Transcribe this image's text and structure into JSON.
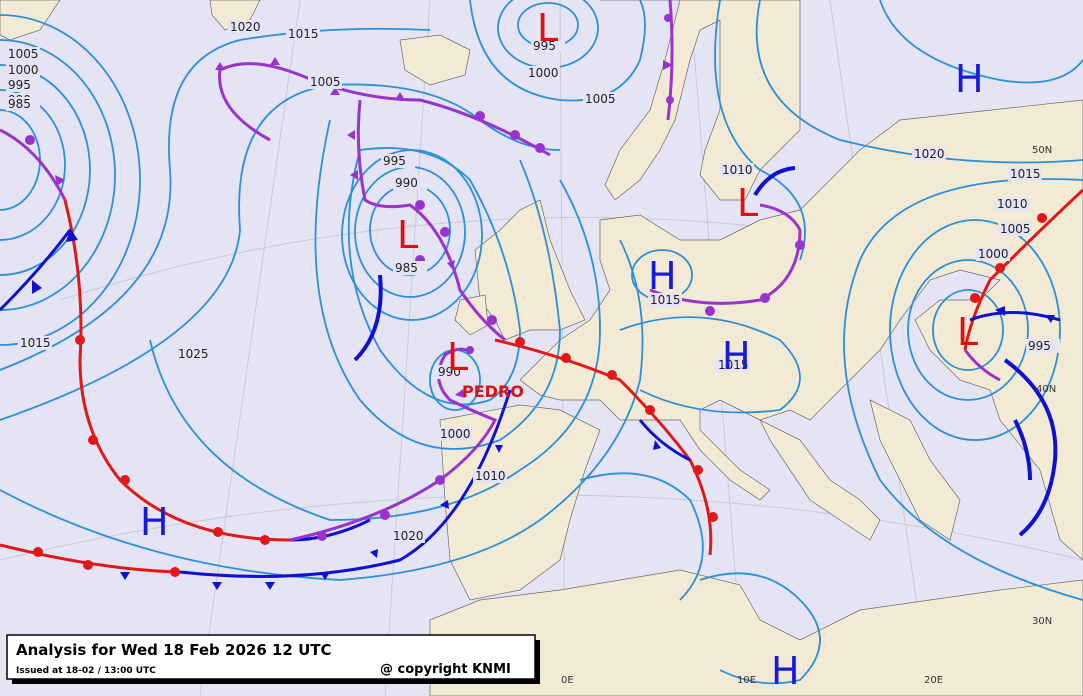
{
  "caption": {
    "title": "Analysis for Wed 18 Feb 2026 12 UTC",
    "issued": "Issued at 18-02 / 13:00 UTC",
    "copyright": "@ copyright KNMI"
  },
  "storm_name": "PEDRO",
  "pressure_centers": [
    {
      "label": "H",
      "color": "#1a1ad6"
    },
    {
      "label": "L",
      "color": "#e01010"
    },
    {
      "label": "L",
      "color": "#e01010"
    },
    {
      "label": "H",
      "color": "#1a1ad6"
    },
    {
      "label": "H",
      "color": "#1a1ad6"
    },
    {
      "label": "L",
      "color": "#e01010"
    },
    {
      "label": "L",
      "color": "#e01010"
    },
    {
      "label": "H",
      "color": "#1a1ad6"
    },
    {
      "label": "H",
      "color": "#1a1ad6"
    },
    {
      "label": "L",
      "color": "#e01010"
    }
  ],
  "isobar_labels": [
    "1020",
    "1015",
    "1005",
    "1000",
    "995",
    "990",
    "985",
    "1005",
    "995",
    "990",
    "985",
    "995",
    "1000",
    "1005",
    "1010",
    "1015",
    "1020",
    "1015",
    "1010",
    "1005",
    "1000",
    "995",
    "1025",
    "1015",
    "990",
    "1000",
    "1010",
    "1020",
    "1015"
  ],
  "graticule_labels": [
    "50N",
    "40N",
    "30N",
    "0E",
    "10E",
    "20E"
  ]
}
